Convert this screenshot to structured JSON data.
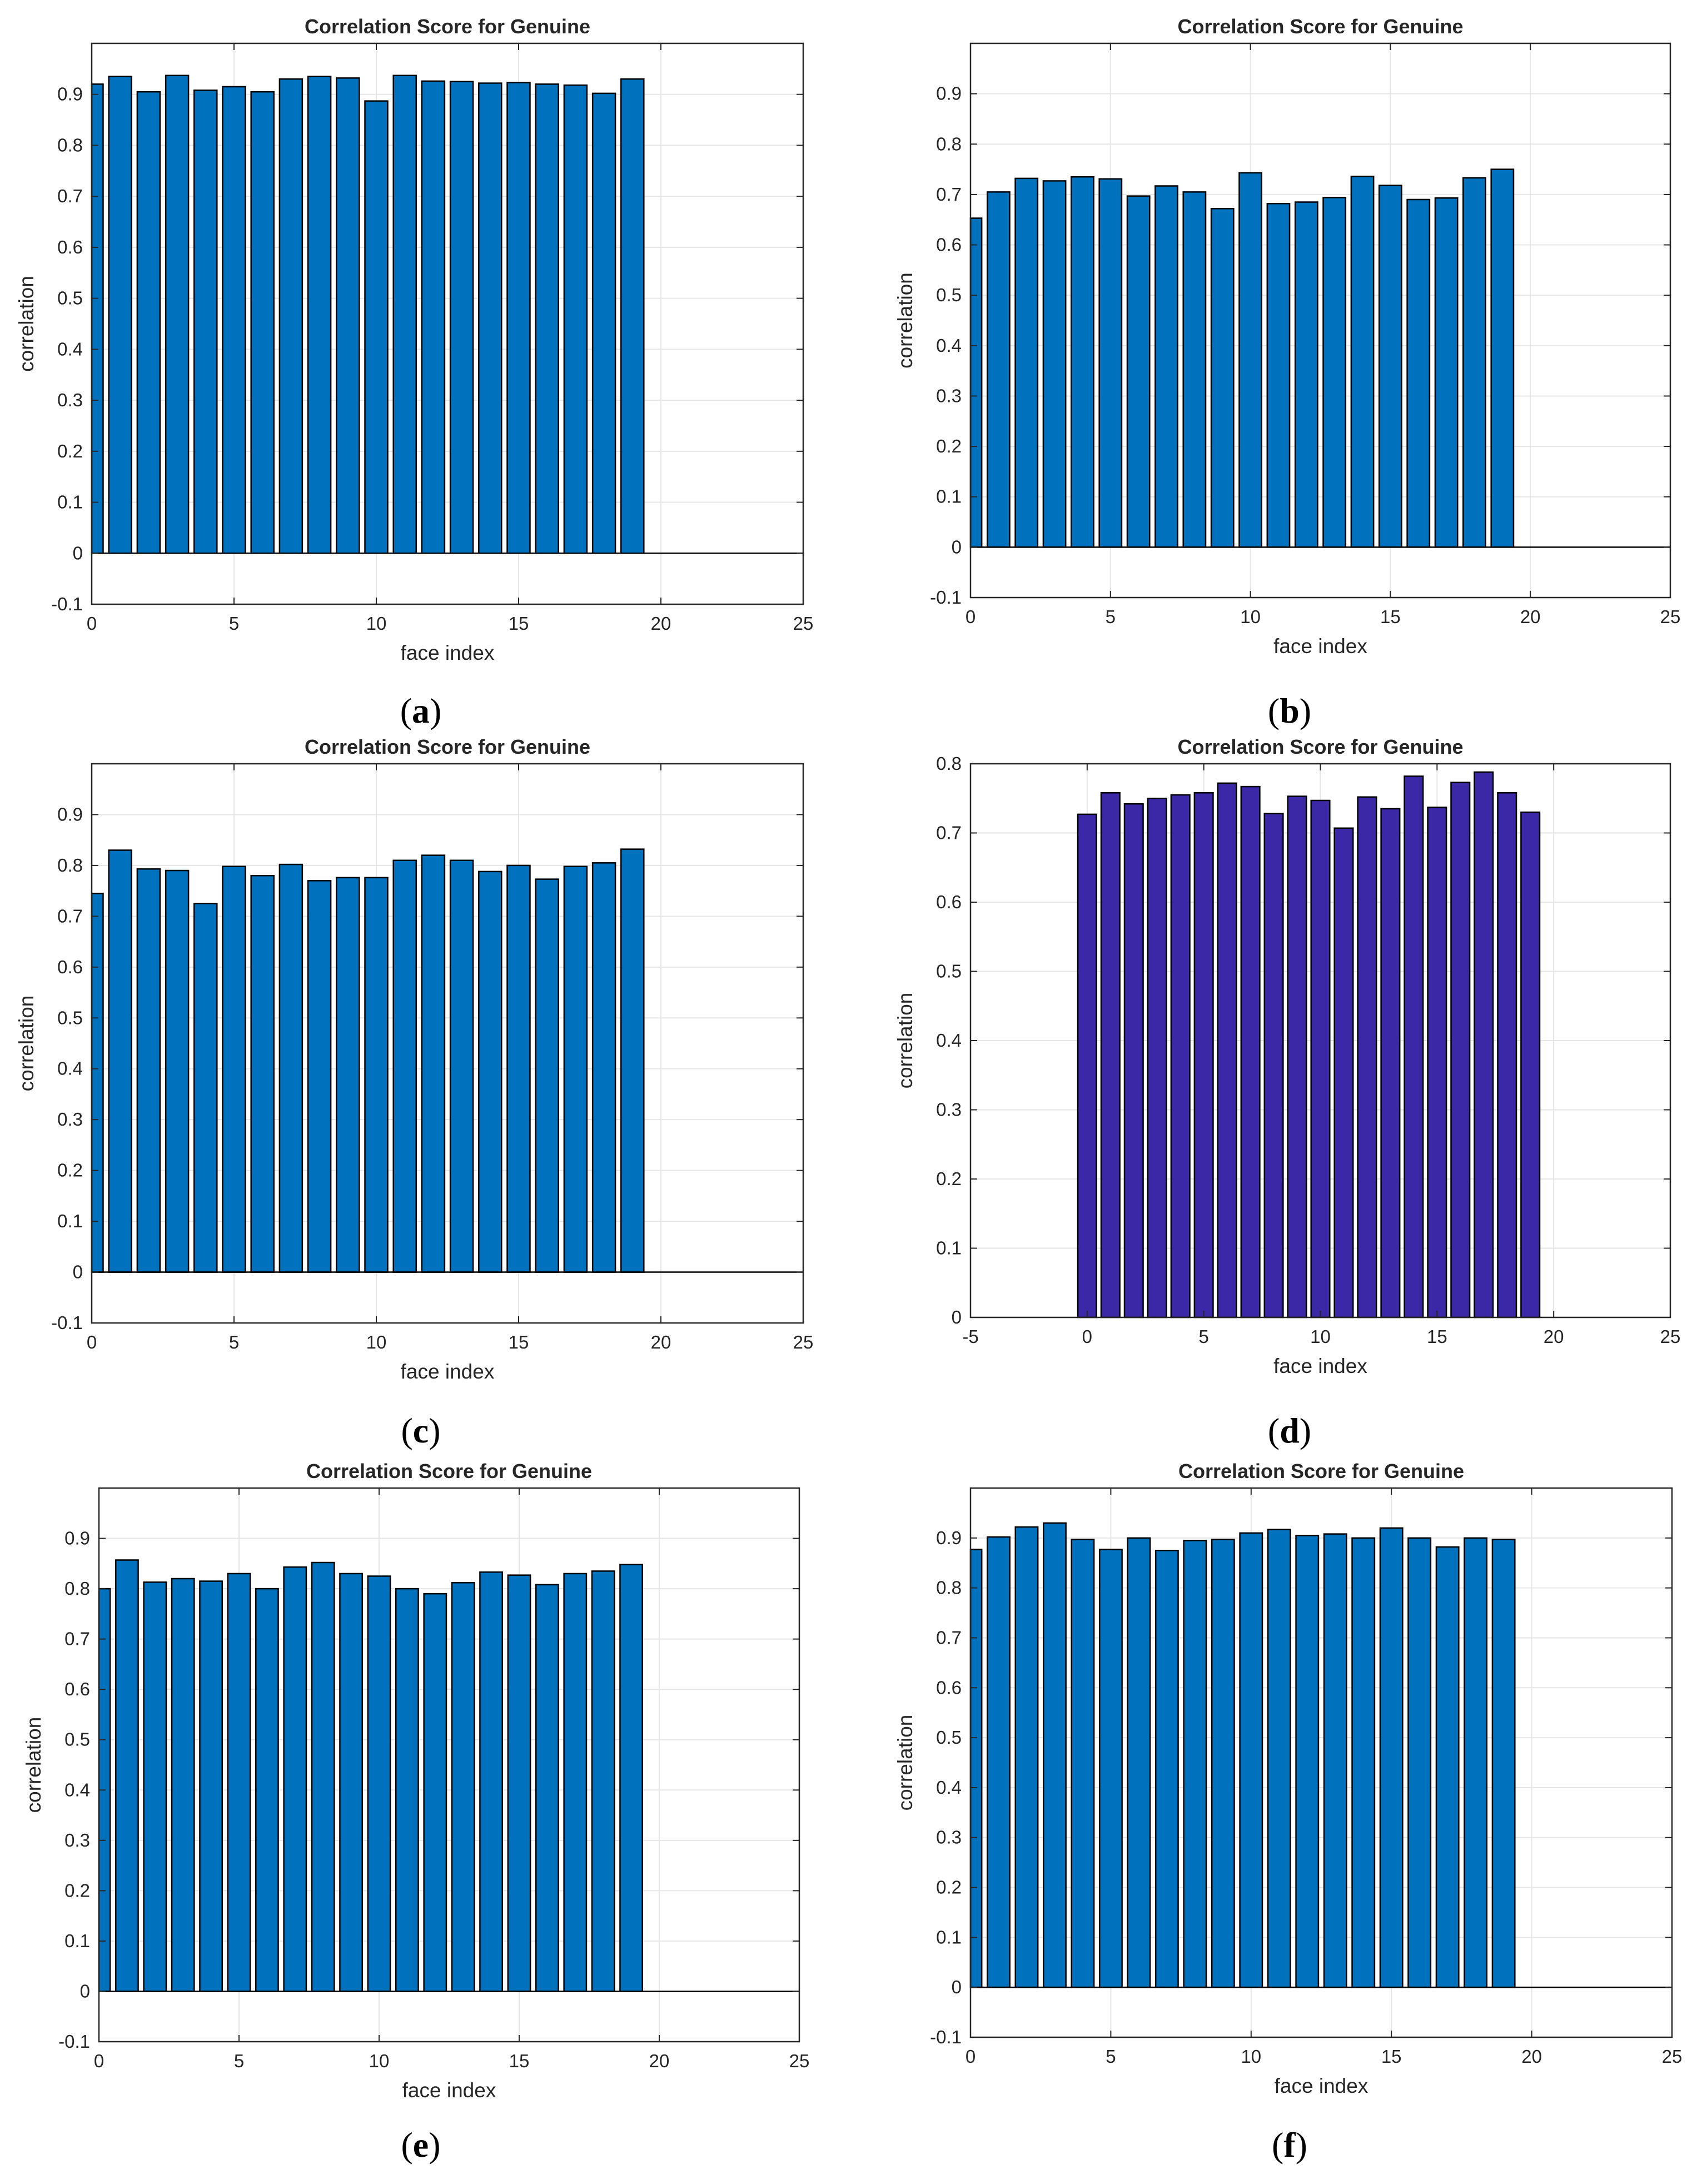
{
  "figure": {
    "panels": 6
  },
  "chart_data": [
    {
      "id": "a",
      "caption_letter": "a",
      "caption_open": "(",
      "caption_close": ")",
      "type": "bar",
      "title": "Correlation Score for Genuine",
      "xlabel": "face index",
      "ylabel": "correlation",
      "x": [
        0,
        1,
        2,
        3,
        4,
        5,
        6,
        7,
        8,
        9,
        10,
        11,
        12,
        13,
        14,
        15,
        16,
        17,
        18,
        19,
        20
      ],
      "values": [
        0.92,
        0.935,
        0.905,
        0.937,
        0.908,
        0.915,
        0.905,
        0.93,
        0.935,
        0.932,
        0.887,
        0.937,
        0.926,
        0.925,
        0.922,
        0.923,
        0.92,
        0.918,
        0.902,
        0.93,
        0.0
      ],
      "xlim": [
        0,
        25
      ],
      "ylim": [
        -0.1,
        1.0
      ],
      "xticks": [
        0,
        5,
        10,
        15,
        20,
        25
      ],
      "xtick_labels": [
        "0",
        "5",
        "10",
        "15",
        "20",
        "25"
      ],
      "yticks": [
        -0.1,
        0,
        0.1,
        0.2,
        0.3,
        0.4,
        0.5,
        0.6,
        0.7,
        0.8,
        0.9
      ],
      "ytick_labels": [
        "-0.1",
        "0",
        "0.1",
        "0.2",
        "0.3",
        "0.4",
        "0.5",
        "0.6",
        "0.7",
        "0.8",
        "0.9"
      ],
      "bar_color": "#0072BD",
      "grid": true
    },
    {
      "id": "b",
      "caption_letter": "b",
      "caption_open": "(",
      "caption_close": ")",
      "type": "bar",
      "title": "Correlation Score for Genuine",
      "xlabel": "face index",
      "ylabel": "correlation",
      "x": [
        0,
        1,
        2,
        3,
        4,
        5,
        6,
        7,
        8,
        9,
        10,
        11,
        12,
        13,
        14,
        15,
        16,
        17,
        18,
        19,
        20
      ],
      "values": [
        0.653,
        0.705,
        0.732,
        0.727,
        0.735,
        0.731,
        0.697,
        0.717,
        0.705,
        0.672,
        0.743,
        0.682,
        0.685,
        0.694,
        0.736,
        0.718,
        0.69,
        0.693,
        0.733,
        0.75,
        0.0
      ],
      "xlim": [
        0,
        25
      ],
      "ylim": [
        -0.1,
        1.0
      ],
      "xticks": [
        0,
        5,
        10,
        15,
        20,
        25
      ],
      "xtick_labels": [
        "0",
        "5",
        "10",
        "15",
        "20",
        "25"
      ],
      "yticks": [
        -0.1,
        0,
        0.1,
        0.2,
        0.3,
        0.4,
        0.5,
        0.6,
        0.7,
        0.8,
        0.9
      ],
      "ytick_labels": [
        "-0.1",
        "0",
        "0.1",
        "0.2",
        "0.3",
        "0.4",
        "0.5",
        "0.6",
        "0.7",
        "0.8",
        "0.9"
      ],
      "bar_color": "#0072BD",
      "grid": true
    },
    {
      "id": "c",
      "caption_letter": "c",
      "caption_open": "(",
      "caption_close": ")",
      "type": "bar",
      "title": "Correlation Score for Genuine",
      "xlabel": "face index",
      "ylabel": "correlation",
      "x": [
        0,
        1,
        2,
        3,
        4,
        5,
        6,
        7,
        8,
        9,
        10,
        11,
        12,
        13,
        14,
        15,
        16,
        17,
        18,
        19,
        20
      ],
      "values": [
        0.745,
        0.83,
        0.793,
        0.79,
        0.725,
        0.798,
        0.78,
        0.802,
        0.77,
        0.776,
        0.776,
        0.81,
        0.82,
        0.81,
        0.788,
        0.8,
        0.773,
        0.798,
        0.805,
        0.832,
        0.0
      ],
      "xlim": [
        0,
        25
      ],
      "ylim": [
        -0.1,
        1.0
      ],
      "xticks": [
        0,
        5,
        10,
        15,
        20,
        25
      ],
      "xtick_labels": [
        "0",
        "5",
        "10",
        "15",
        "20",
        "25"
      ],
      "yticks": [
        -0.1,
        0,
        0.1,
        0.2,
        0.3,
        0.4,
        0.5,
        0.6,
        0.7,
        0.8,
        0.9
      ],
      "ytick_labels": [
        "-0.1",
        "0",
        "0.1",
        "0.2",
        "0.3",
        "0.4",
        "0.5",
        "0.6",
        "0.7",
        "0.8",
        "0.9"
      ],
      "bar_color": "#0072BD",
      "grid": true
    },
    {
      "id": "d",
      "caption_letter": "d",
      "caption_open": "(",
      "caption_close": ")",
      "type": "bar",
      "title": "Correlation Score for Genuine",
      "xlabel": "face index",
      "ylabel": "correlation",
      "x": [
        0,
        1,
        2,
        3,
        4,
        5,
        6,
        7,
        8,
        9,
        10,
        11,
        12,
        13,
        14,
        15,
        16,
        17,
        18,
        19,
        20
      ],
      "values": [
        0.727,
        0.758,
        0.742,
        0.75,
        0.755,
        0.758,
        0.772,
        0.767,
        0.728,
        0.753,
        0.747,
        0.707,
        0.752,
        0.735,
        0.782,
        0.737,
        0.773,
        0.788,
        0.758,
        0.73,
        0.0
      ],
      "xlim": [
        -5,
        25
      ],
      "ylim": [
        0,
        0.8
      ],
      "xticks": [
        -5,
        0,
        5,
        10,
        15,
        20,
        25
      ],
      "xtick_labels": [
        "-5",
        "0",
        "5",
        "10",
        "15",
        "20",
        "25"
      ],
      "yticks": [
        0,
        0.1,
        0.2,
        0.3,
        0.4,
        0.5,
        0.6,
        0.7,
        0.8
      ],
      "ytick_labels": [
        "0",
        "0.1",
        "0.2",
        "0.3",
        "0.4",
        "0.5",
        "0.6",
        "0.7",
        "0.8"
      ],
      "bar_color": "#3A28A6",
      "grid": true
    },
    {
      "id": "e",
      "caption_letter": "e",
      "caption_open": "(",
      "caption_close": ")",
      "type": "bar",
      "title": "Correlation Score for Genuine",
      "xlabel": "face index",
      "ylabel": "correlation",
      "x": [
        0,
        1,
        2,
        3,
        4,
        5,
        6,
        7,
        8,
        9,
        10,
        11,
        12,
        13,
        14,
        15,
        16,
        17,
        18,
        19,
        20
      ],
      "values": [
        0.8,
        0.857,
        0.813,
        0.82,
        0.815,
        0.83,
        0.8,
        0.843,
        0.852,
        0.83,
        0.825,
        0.8,
        0.79,
        0.812,
        0.833,
        0.827,
        0.808,
        0.83,
        0.835,
        0.848,
        0.0
      ],
      "xlim": [
        0,
        25
      ],
      "ylim": [
        -0.1,
        1.0
      ],
      "xticks": [
        0,
        5,
        10,
        15,
        20,
        25
      ],
      "xtick_labels": [
        "0",
        "5",
        "10",
        "15",
        "20",
        "25"
      ],
      "yticks": [
        -0.1,
        0,
        0.1,
        0.2,
        0.3,
        0.4,
        0.5,
        0.6,
        0.7,
        0.8,
        0.9
      ],
      "ytick_labels": [
        "-0.1",
        "0",
        "0.1",
        "0.2",
        "0.3",
        "0.4",
        "0.5",
        "0.6",
        "0.7",
        "0.8",
        "0.9"
      ],
      "bar_color": "#0072BD",
      "grid": true
    },
    {
      "id": "f",
      "caption_letter": "f",
      "caption_open": "(",
      "caption_close": ")",
      "type": "bar",
      "title": "Correlation Score for Genuine",
      "xlabel": "face index",
      "ylabel": "correlation",
      "x": [
        0,
        1,
        2,
        3,
        4,
        5,
        6,
        7,
        8,
        9,
        10,
        11,
        12,
        13,
        14,
        15,
        16,
        17,
        18,
        19,
        20
      ],
      "values": [
        0.877,
        0.902,
        0.922,
        0.93,
        0.897,
        0.877,
        0.9,
        0.875,
        0.895,
        0.897,
        0.91,
        0.917,
        0.905,
        0.908,
        0.9,
        0.92,
        0.9,
        0.882,
        0.9,
        0.897,
        0.0
      ],
      "xlim": [
        0,
        25
      ],
      "ylim": [
        -0.1,
        1.0
      ],
      "xticks": [
        0,
        5,
        10,
        15,
        20,
        25
      ],
      "xtick_labels": [
        "0",
        "5",
        "10",
        "15",
        "20",
        "25"
      ],
      "yticks": [
        -0.1,
        0,
        0.1,
        0.2,
        0.3,
        0.4,
        0.5,
        0.6,
        0.7,
        0.8,
        0.9
      ],
      "ytick_labels": [
        "-0.1",
        "0",
        "0.1",
        "0.2",
        "0.3",
        "0.4",
        "0.5",
        "0.6",
        "0.7",
        "0.8",
        "0.9"
      ],
      "bar_color": "#0072BD",
      "grid": true
    }
  ]
}
